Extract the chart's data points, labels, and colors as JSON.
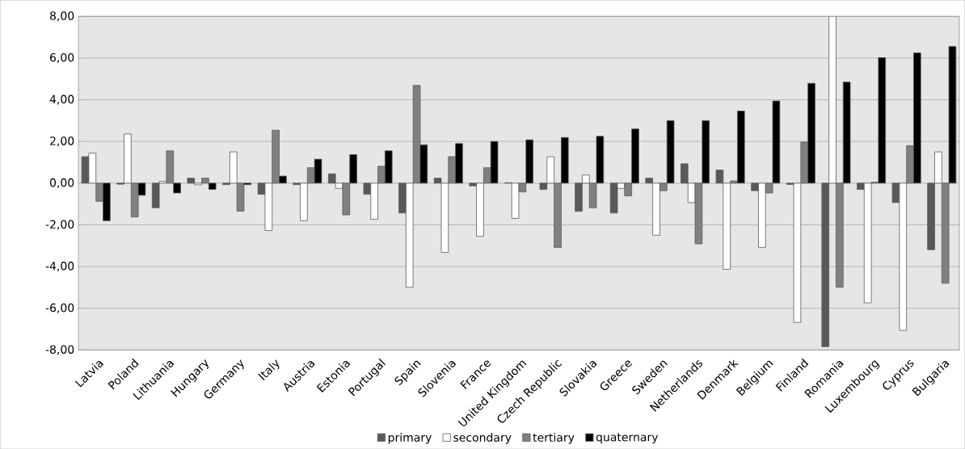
{
  "chart_data": {
    "type": "bar",
    "categories": [
      "Latvia",
      "Poland",
      "Lithuania",
      "Hungary",
      "Germany",
      "Italy",
      "Austria",
      "Estonia",
      "Portugal",
      "Spain",
      "Slovenia",
      "France",
      "United Kingdom",
      "Czech Republic",
      "Slovakia",
      "Greece",
      "Sweden",
      "Netherlands",
      "Denmark",
      "Belgium",
      "Finland",
      "Romania",
      "Luxembourg",
      "Cyprus",
      "Bulgaria"
    ],
    "series": [
      {
        "name": "primary",
        "color": "#595959",
        "values": [
          1.27,
          -0.05,
          -1.18,
          0.24,
          -0.07,
          -0.53,
          -0.07,
          0.45,
          -0.53,
          -1.43,
          0.24,
          -0.13,
          0.02,
          -0.3,
          -1.35,
          -1.43,
          0.24,
          0.93,
          0.63,
          -0.36,
          -0.06,
          -7.84,
          -0.3,
          -0.93,
          -3.19
        ]
      },
      {
        "name": "secondary",
        "color": "#ffffff",
        "values": [
          1.44,
          2.36,
          0.09,
          -0.08,
          1.5,
          -2.27,
          -1.8,
          -0.25,
          -1.73,
          -4.99,
          -3.32,
          -2.55,
          -1.69,
          1.27,
          0.39,
          -0.25,
          -2.5,
          -0.93,
          -4.13,
          -3.08,
          -6.68,
          8,
          -5.74,
          -7.06,
          1.5
        ]
      },
      {
        "name": "tertiary",
        "color": "#808080",
        "values": [
          -0.87,
          -1.62,
          1.55,
          0.24,
          -1.34,
          2.54,
          0.74,
          -1.52,
          0.81,
          4.69,
          1.27,
          0.74,
          -0.42,
          -3.08,
          -1.18,
          -0.61,
          -0.36,
          -2.91,
          0.11,
          -0.47,
          1.97,
          -4.99,
          0.05,
          1.8,
          -4.8
        ]
      },
      {
        "name": "quaternary",
        "color": "#000000",
        "values": [
          -1.8,
          -0.58,
          -0.47,
          -0.3,
          -0.07,
          0.34,
          1.15,
          1.37,
          1.55,
          1.84,
          1.9,
          2.0,
          2.08,
          2.19,
          2.25,
          2.6,
          3.0,
          3.0,
          3.46,
          3.94,
          4.79,
          4.85,
          6.02,
          6.25,
          6.56
        ]
      }
    ],
    "ylim": [
      -8,
      8
    ],
    "yticks": [
      {
        "value": -8,
        "label": "-8,00"
      },
      {
        "value": -6,
        "label": "-6,00"
      },
      {
        "value": -4,
        "label": "-4,00"
      },
      {
        "value": -2,
        "label": "-2,00"
      },
      {
        "value": 0,
        "label": "0,00"
      },
      {
        "value": 2,
        "label": "2,00"
      },
      {
        "value": 4,
        "label": "4,00"
      },
      {
        "value": 6,
        "label": "6,00"
      },
      {
        "value": 8,
        "label": "8,00"
      }
    ],
    "grid": "y",
    "legend": "bottom"
  }
}
